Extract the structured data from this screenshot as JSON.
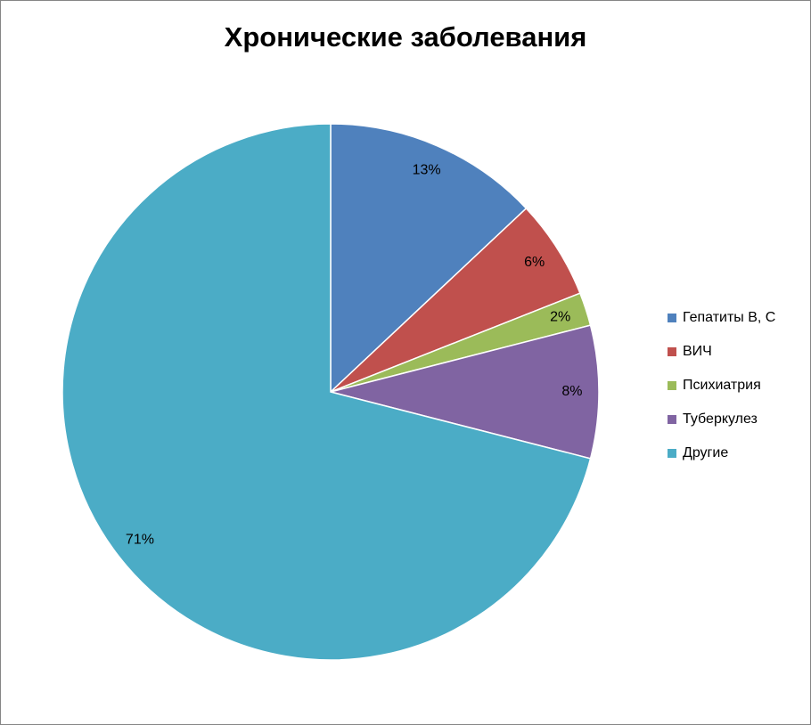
{
  "chart_data": {
    "type": "pie",
    "title": "Хронические заболевания",
    "categories": [
      "Гепатиты В, С",
      "ВИЧ",
      "Психиатрия",
      "Туберкулез",
      "Другие"
    ],
    "values": [
      13,
      6,
      2,
      8,
      71
    ],
    "value_labels": [
      "13%",
      "6%",
      "2%",
      "8%",
      "71%"
    ],
    "colors": [
      "#4F81BD",
      "#C0504D",
      "#9BBB59",
      "#8064A2",
      "#4BACC6"
    ],
    "legend": "right"
  }
}
